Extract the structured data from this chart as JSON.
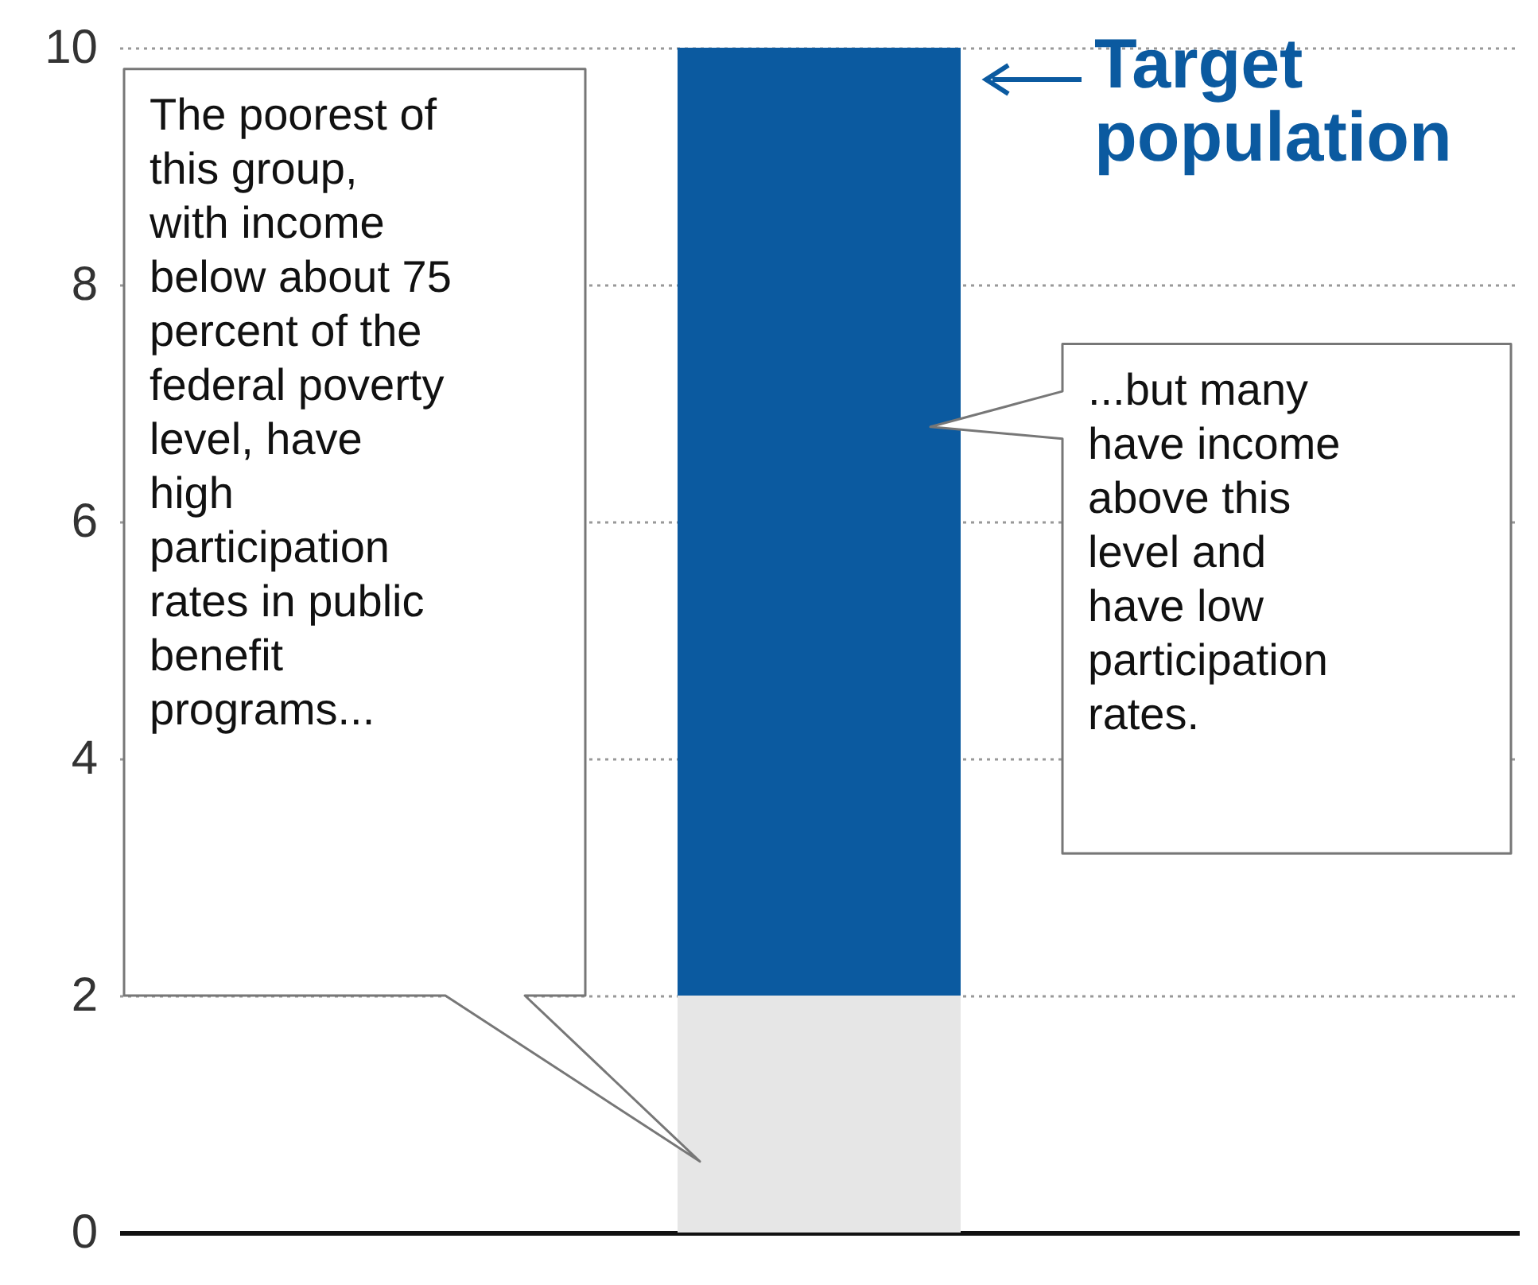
{
  "chart_data": {
    "type": "bar",
    "stacked": true,
    "categories": [
      null
    ],
    "series": [
      {
        "color": "#e6e6e6",
        "values": [
          2
        ]
      },
      {
        "name": "Target population",
        "color": "#0b5aa0",
        "values": [
          8
        ]
      }
    ],
    "ylim": [
      0,
      10
    ],
    "yticks": [
      0,
      2,
      4,
      6,
      8,
      10
    ],
    "grid": "y",
    "annotations": [
      "The poorest of this group, with income below about 75 percent of the federal poverty level, have high participation rates in public benefit programs...",
      "...but many have income above this level and have low participation rates."
    ]
  }
}
